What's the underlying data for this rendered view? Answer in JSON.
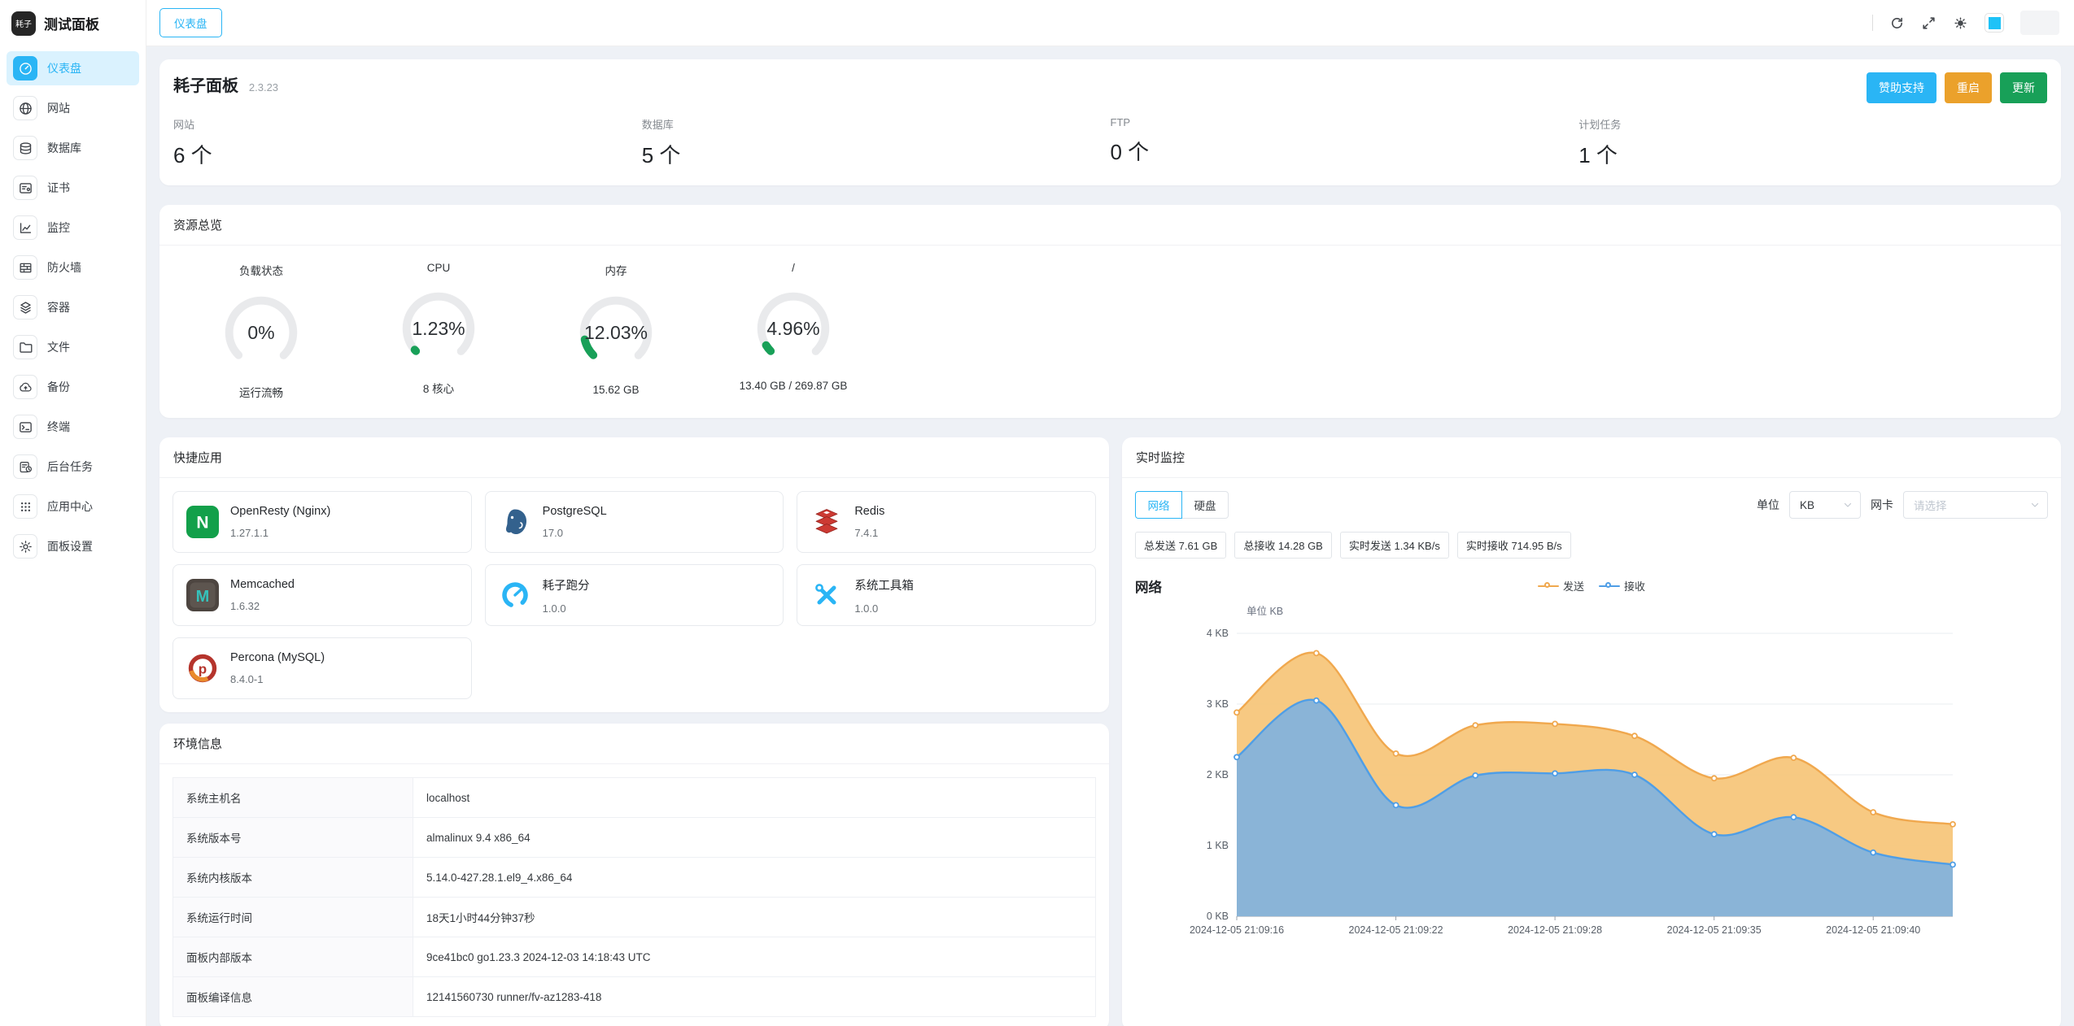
{
  "accent": "#2ab5f5",
  "brand": {
    "logo": "耗子",
    "title": "测试面板"
  },
  "topbar": {
    "tab": "仪表盘",
    "theme_color": "#1ec2f7"
  },
  "sidebar": {
    "items": [
      {
        "label": "仪表盘",
        "icon": "dashboard-icon",
        "active": true
      },
      {
        "label": "网站",
        "icon": "website-icon"
      },
      {
        "label": "数据库",
        "icon": "database-icon"
      },
      {
        "label": "证书",
        "icon": "certificate-icon"
      },
      {
        "label": "监控",
        "icon": "monitor-icon"
      },
      {
        "label": "防火墙",
        "icon": "firewall-icon"
      },
      {
        "label": "容器",
        "icon": "container-icon"
      },
      {
        "label": "文件",
        "icon": "files-icon"
      },
      {
        "label": "备份",
        "icon": "backup-icon"
      },
      {
        "label": "终端",
        "icon": "terminal-icon"
      },
      {
        "label": "后台任务",
        "icon": "tasks-icon"
      },
      {
        "label": "应用中心",
        "icon": "appstore-icon"
      },
      {
        "label": "面板设置",
        "icon": "settings-icon"
      }
    ]
  },
  "header": {
    "title": "耗子面板",
    "version": "2.3.23",
    "buttons": [
      {
        "label": "赞助支持",
        "color": "#2ab5f5"
      },
      {
        "label": "重启",
        "color": "#eba12b"
      },
      {
        "label": "更新",
        "color": "#18a058"
      }
    ],
    "stats": [
      {
        "label": "网站",
        "value": "6 个"
      },
      {
        "label": "数据库",
        "value": "5 个"
      },
      {
        "label": "FTP",
        "value": "0 个"
      },
      {
        "label": "计划任务",
        "value": "1 个"
      }
    ]
  },
  "resources": {
    "title": "资源总览",
    "gauge_color": "#18a058",
    "gauges": [
      {
        "label": "负载状态",
        "percent": "0%",
        "value": 0,
        "sub": "运行流畅"
      },
      {
        "label": "CPU",
        "percent": "1.23%",
        "value": 1.23,
        "sub": "8 核心"
      },
      {
        "label": "内存",
        "percent": "12.03%",
        "value": 12.03,
        "sub": "15.62 GB"
      },
      {
        "label": "/",
        "percent": "4.96%",
        "value": 4.96,
        "sub": "13.40 GB / 269.87 GB"
      }
    ]
  },
  "apps": {
    "title": "快捷应用",
    "items": [
      {
        "name": "OpenResty (Nginx)",
        "version": "1.27.1.1",
        "icon": "openresty-icon"
      },
      {
        "name": "PostgreSQL",
        "version": "17.0",
        "icon": "postgresql-icon"
      },
      {
        "name": "Redis",
        "version": "7.4.1",
        "icon": "redis-icon"
      },
      {
        "name": "Memcached",
        "version": "1.6.32",
        "icon": "memcached-icon"
      },
      {
        "name": "耗子跑分",
        "version": "1.0.0",
        "icon": "benchmark-icon"
      },
      {
        "name": "系统工具箱",
        "version": "1.0.0",
        "icon": "toolbox-icon"
      },
      {
        "name": "Percona (MySQL)",
        "version": "8.4.0-1",
        "icon": "percona-icon"
      }
    ]
  },
  "environment": {
    "title": "环境信息",
    "rows": [
      {
        "label": "系统主机名",
        "value": "localhost"
      },
      {
        "label": "系统版本号",
        "value": "almalinux 9.4 x86_64"
      },
      {
        "label": "系统内核版本",
        "value": "5.14.0-427.28.1.el9_4.x86_64"
      },
      {
        "label": "系统运行时间",
        "value": "18天1小时44分钟37秒"
      },
      {
        "label": "面板内部版本",
        "value": "9ce41bc0 go1.23.3 2024-12-03 14:18:43 UTC"
      },
      {
        "label": "面板编译信息",
        "value": "12141560730 runner/fv-az1283-418"
      }
    ]
  },
  "monitoring": {
    "title": "实时监控",
    "tabs": [
      {
        "label": "网络",
        "active": true
      },
      {
        "label": "硬盘",
        "active": false
      }
    ],
    "unit": {
      "label": "单位",
      "value": "KB"
    },
    "nic": {
      "label": "网卡",
      "placeholder": "请选择"
    },
    "badges": [
      "总发送 7.61 GB",
      "总接收 14.28 GB",
      "实时发送 1.34 KB/s",
      "实时接收 714.95 B/s"
    ]
  },
  "chart_data": {
    "type": "area",
    "title": "网络",
    "unit_label": "单位 KB",
    "unit": "KB",
    "ylim": [
      0,
      4
    ],
    "y_ticks": [
      "4 KB",
      "3 KB",
      "2 KB",
      "1 KB",
      "0 KB"
    ],
    "grid": true,
    "legend_position": "top-center",
    "x_labels": [
      "2024-12-05 21:09:16",
      "2024-12-05 21:09:22",
      "2024-12-05 21:09:28",
      "2024-12-05 21:09:35",
      "2024-12-05 21:09:40"
    ],
    "x_label_indices": [
      0,
      2,
      4,
      6,
      8
    ],
    "series": [
      {
        "name": "发送",
        "color": "#f0a84e",
        "fill": "#f7c77d",
        "values": [
          2.88,
          3.72,
          2.3,
          2.7,
          2.72,
          2.55,
          1.95,
          2.24,
          1.47,
          1.3
        ]
      },
      {
        "name": "接收",
        "color": "#4f9ee6",
        "fill": "#85b3db",
        "values": [
          2.25,
          3.05,
          1.57,
          1.99,
          2.02,
          2.0,
          1.16,
          1.4,
          0.9,
          0.73
        ]
      }
    ]
  }
}
